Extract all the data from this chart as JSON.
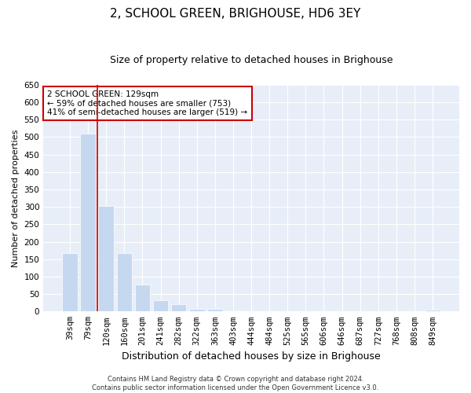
{
  "title": "2, SCHOOL GREEN, BRIGHOUSE, HD6 3EY",
  "subtitle": "Size of property relative to detached houses in Brighouse",
  "xlabel": "Distribution of detached houses by size in Brighouse",
  "ylabel": "Number of detached properties",
  "categories": [
    "39sqm",
    "79sqm",
    "120sqm",
    "160sqm",
    "201sqm",
    "241sqm",
    "282sqm",
    "322sqm",
    "363sqm",
    "403sqm",
    "444sqm",
    "484sqm",
    "525sqm",
    "565sqm",
    "606sqm",
    "646sqm",
    "687sqm",
    "727sqm",
    "768sqm",
    "808sqm",
    "849sqm"
  ],
  "values": [
    168,
    510,
    302,
    167,
    77,
    32,
    20,
    7,
    8,
    4,
    0,
    0,
    0,
    0,
    0,
    0,
    0,
    0,
    0,
    0,
    5
  ],
  "bar_color": "#c5d8f0",
  "vline_color": "#cc0000",
  "vline_position": 1.5,
  "annotation_text": "2 SCHOOL GREEN: 129sqm\n← 59% of detached houses are smaller (753)\n41% of semi-detached houses are larger (519) →",
  "annotation_box_color": "#cc0000",
  "ylim": [
    0,
    650
  ],
  "yticks": [
    0,
    50,
    100,
    150,
    200,
    250,
    300,
    350,
    400,
    450,
    500,
    550,
    600,
    650
  ],
  "footnote": "Contains HM Land Registry data © Crown copyright and database right 2024.\nContains public sector information licensed under the Open Government Licence v3.0.",
  "plot_bg_color": "#e8eef8",
  "grid_color": "#ffffff",
  "title_fontsize": 11,
  "subtitle_fontsize": 9,
  "xlabel_fontsize": 9,
  "ylabel_fontsize": 8,
  "tick_fontsize": 7.5,
  "annotation_fontsize": 7.5,
  "footnote_fontsize": 6
}
